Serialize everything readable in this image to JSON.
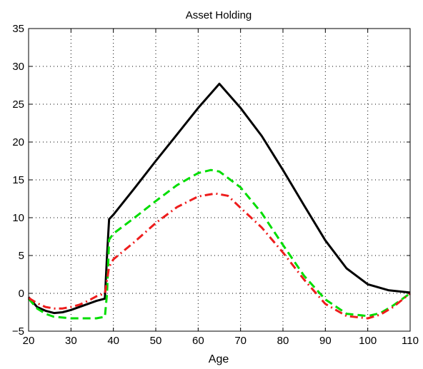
{
  "chart_data": {
    "type": "line",
    "title": "Asset Holding",
    "xlabel": "Age",
    "ylabel": "",
    "xlim": [
      20,
      110
    ],
    "ylim": [
      -5,
      35
    ],
    "xticks": [
      20,
      30,
      40,
      50,
      60,
      70,
      80,
      90,
      100,
      110
    ],
    "yticks": [
      -5,
      0,
      5,
      10,
      15,
      20,
      25,
      30,
      35
    ],
    "xtick_labels": [
      "20",
      "30",
      "40",
      "50",
      "60",
      "70",
      "80",
      "90",
      "100",
      "110"
    ],
    "ytick_labels": [
      "−5",
      "0",
      "5",
      "10",
      "15",
      "20",
      "25",
      "30",
      "35"
    ],
    "grid": true,
    "series": [
      {
        "color": "#000000",
        "style": "solid",
        "x": [
          20,
          22,
          24,
          26,
          28,
          30,
          32,
          34,
          36,
          38,
          38.5,
          39,
          40,
          45,
          50,
          55,
          60,
          65,
          70,
          75,
          80,
          85,
          90,
          95,
          100,
          105,
          110
        ],
        "y": [
          -0.5,
          -1.8,
          -2.3,
          -2.6,
          -2.5,
          -2.2,
          -1.8,
          -1.4,
          -1.0,
          -0.7,
          5.0,
          9.8,
          10.4,
          13.9,
          17.5,
          21.0,
          24.5,
          27.7,
          24.5,
          20.8,
          16.3,
          11.6,
          7.0,
          3.3,
          1.2,
          0.4,
          0.1
        ]
      },
      {
        "color": "#00dd00",
        "style": "dashed",
        "x": [
          20,
          22,
          24,
          26,
          28,
          30,
          32,
          34,
          36,
          37,
          38,
          38.5,
          39,
          40,
          45,
          50,
          55,
          60,
          63,
          65,
          70,
          75,
          80,
          85,
          90,
          95,
          100,
          103,
          106,
          110
        ],
        "y": [
          -0.7,
          -2.0,
          -2.7,
          -3.1,
          -3.2,
          -3.3,
          -3.3,
          -3.3,
          -3.3,
          -3.2,
          -3.1,
          0.0,
          7.1,
          7.9,
          10.0,
          12.2,
          14.3,
          15.9,
          16.3,
          16.1,
          14.0,
          10.6,
          6.4,
          2.3,
          -0.8,
          -2.7,
          -3.0,
          -2.6,
          -1.6,
          0.0
        ]
      },
      {
        "color": "#ee1c1c",
        "style": "dashdot",
        "x": [
          20,
          22,
          24,
          26,
          28,
          30,
          32,
          34,
          36,
          38,
          39,
          40,
          45,
          50,
          55,
          60,
          64,
          67,
          70,
          75,
          80,
          85,
          90,
          95,
          100,
          103,
          106,
          110
        ],
        "y": [
          -0.6,
          -1.3,
          -1.8,
          -2.0,
          -2.0,
          -1.8,
          -1.5,
          -1.0,
          -0.4,
          0.0,
          3.5,
          4.5,
          6.8,
          9.3,
          11.4,
          12.8,
          13.2,
          12.9,
          11.3,
          8.7,
          5.4,
          1.8,
          -1.4,
          -3.0,
          -3.3,
          -2.8,
          -1.8,
          0.0
        ]
      }
    ]
  }
}
